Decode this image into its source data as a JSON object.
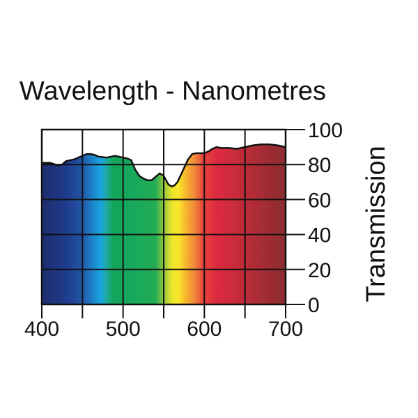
{
  "chart_data": {
    "type": "area",
    "title": "Wavelength - Nanometres",
    "xlabel": "Wavelength - Nanometres",
    "ylabel": "Transmission",
    "xlim": [
      400,
      700
    ],
    "ylim": [
      0,
      100
    ],
    "x_ticks": [
      400,
      500,
      600,
      700
    ],
    "x_gridlines": [
      400,
      450,
      500,
      550,
      600,
      650,
      700
    ],
    "y_ticks": [
      0,
      20,
      40,
      60,
      80,
      100
    ],
    "grid": true,
    "series": [
      {
        "name": "Transmission",
        "x": [
          400,
          410,
          420,
          425,
          430,
          440,
          450,
          455,
          460,
          465,
          470,
          480,
          490,
          500,
          505,
          510,
          515,
          520,
          525,
          530,
          535,
          540,
          545,
          550,
          553,
          556,
          560,
          563,
          567,
          570,
          575,
          580,
          585,
          590,
          595,
          600,
          605,
          610,
          615,
          620,
          630,
          640,
          650,
          660,
          670,
          680,
          690,
          700
        ],
        "y": [
          81,
          81,
          79.5,
          80,
          82,
          83,
          85,
          86,
          86,
          85.5,
          84.5,
          84,
          85,
          84,
          83.5,
          82.5,
          77,
          73.5,
          72,
          71,
          71,
          73,
          75,
          73.5,
          71,
          68.5,
          67.5,
          68,
          70,
          73,
          78,
          83,
          86,
          86.5,
          86.5,
          86.5,
          87.5,
          89,
          90,
          89.5,
          89.5,
          89,
          90,
          91,
          91.5,
          91.5,
          91,
          90
        ]
      }
    ],
    "spectrum_colors": [
      {
        "nm": 400,
        "color": "#1e2d6e"
      },
      {
        "nm": 430,
        "color": "#1e3c8c"
      },
      {
        "nm": 450,
        "color": "#2456a8"
      },
      {
        "nm": 463,
        "color": "#1b86cb"
      },
      {
        "nm": 473,
        "color": "#18a6df"
      },
      {
        "nm": 480,
        "color": "#1faa9c"
      },
      {
        "nm": 488,
        "color": "#12a55a"
      },
      {
        "nm": 510,
        "color": "#16a85c"
      },
      {
        "nm": 540,
        "color": "#24ac55"
      },
      {
        "nm": 550,
        "color": "#93c63d"
      },
      {
        "nm": 560,
        "color": "#e9e52b"
      },
      {
        "nm": 568,
        "color": "#fbe62a"
      },
      {
        "nm": 578,
        "color": "#f6b22f"
      },
      {
        "nm": 588,
        "color": "#f08a38"
      },
      {
        "nm": 598,
        "color": "#e8463c"
      },
      {
        "nm": 615,
        "color": "#dd2a3f"
      },
      {
        "nm": 640,
        "color": "#c72b3a"
      },
      {
        "nm": 670,
        "color": "#a72c35"
      },
      {
        "nm": 700,
        "color": "#8b2d2f"
      }
    ],
    "line_color": "#111111"
  }
}
